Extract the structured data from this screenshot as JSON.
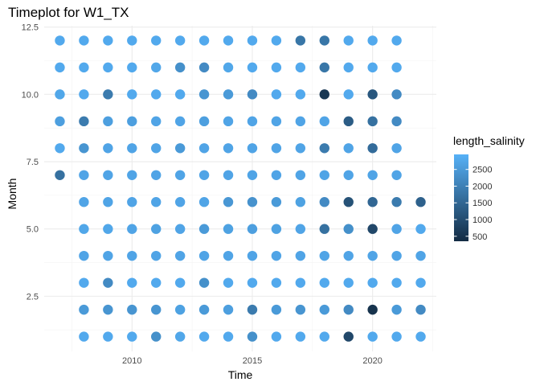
{
  "chart_data": {
    "type": "scatter",
    "title": "Timeplot for W1_TX",
    "xlabel": "Time",
    "ylabel": "Month",
    "xlim": [
      2006.35,
      2022.65
    ],
    "ylim": [
      0.45,
      12.55
    ],
    "x_ticks": [
      2010,
      2015,
      2020
    ],
    "x_tick_labels": [
      "2010",
      "2015",
      "2020"
    ],
    "y_ticks": [
      2.5,
      5.0,
      7.5,
      10.0,
      12.5
    ],
    "y_tick_labels": [
      "2.5",
      "5.0",
      "7.5",
      "10.0",
      "12.5"
    ],
    "grid": true,
    "legend": {
      "title": "length_salinity",
      "position": "right",
      "ticks": [
        500,
        1000,
        1500,
        2000,
        2500
      ],
      "tick_labels": [
        "500",
        "1000",
        "1500",
        "2000",
        "2500"
      ],
      "range": [
        350,
        2950
      ],
      "low_color": "#132B43",
      "high_color": "#56B1F7"
    },
    "series": [
      {
        "x": 2007,
        "points": [
          [
            7,
            1700
          ],
          [
            8,
            2800
          ],
          [
            9,
            2600
          ],
          [
            10,
            2750
          ],
          [
            11,
            2800
          ],
          [
            12,
            2800
          ]
        ]
      },
      {
        "x": 2008,
        "points": [
          [
            1,
            2800
          ],
          [
            2,
            2500
          ],
          [
            3,
            2800
          ],
          [
            4,
            2700
          ],
          [
            5,
            2750
          ],
          [
            6,
            2700
          ],
          [
            7,
            2700
          ],
          [
            8,
            2400
          ],
          [
            9,
            1900
          ],
          [
            10,
            2800
          ],
          [
            11,
            2800
          ],
          [
            12,
            2800
          ]
        ]
      },
      {
        "x": 2009,
        "points": [
          [
            1,
            2800
          ],
          [
            2,
            2400
          ],
          [
            3,
            2200
          ],
          [
            4,
            2700
          ],
          [
            5,
            2750
          ],
          [
            6,
            2700
          ],
          [
            7,
            2700
          ],
          [
            8,
            2700
          ],
          [
            9,
            2600
          ],
          [
            10,
            1900
          ],
          [
            11,
            2800
          ],
          [
            12,
            2800
          ]
        ]
      },
      {
        "x": 2010,
        "points": [
          [
            1,
            2800
          ],
          [
            2,
            2400
          ],
          [
            3,
            2800
          ],
          [
            4,
            2700
          ],
          [
            5,
            2700
          ],
          [
            6,
            2700
          ],
          [
            7,
            2700
          ],
          [
            8,
            2700
          ],
          [
            9,
            2600
          ],
          [
            10,
            2800
          ],
          [
            11,
            2800
          ],
          [
            12,
            2800
          ]
        ]
      },
      {
        "x": 2011,
        "points": [
          [
            1,
            2300
          ],
          [
            2,
            2400
          ],
          [
            3,
            2800
          ],
          [
            4,
            2700
          ],
          [
            5,
            2650
          ],
          [
            6,
            2700
          ],
          [
            7,
            2700
          ],
          [
            8,
            2700
          ],
          [
            9,
            2700
          ],
          [
            10,
            2800
          ],
          [
            11,
            2750
          ],
          [
            12,
            2800
          ]
        ]
      },
      {
        "x": 2012,
        "points": [
          [
            1,
            2750
          ],
          [
            2,
            2650
          ],
          [
            3,
            2800
          ],
          [
            4,
            2700
          ],
          [
            5,
            2700
          ],
          [
            6,
            2700
          ],
          [
            7,
            2700
          ],
          [
            8,
            2500
          ],
          [
            9,
            2700
          ],
          [
            10,
            2800
          ],
          [
            11,
            2300
          ],
          [
            12,
            2800
          ]
        ]
      },
      {
        "x": 2013,
        "points": [
          [
            1,
            2800
          ],
          [
            2,
            2500
          ],
          [
            3,
            2300
          ],
          [
            4,
            2700
          ],
          [
            5,
            2500
          ],
          [
            6,
            2700
          ],
          [
            7,
            2700
          ],
          [
            8,
            2700
          ],
          [
            9,
            2600
          ],
          [
            10,
            2400
          ],
          [
            11,
            2200
          ],
          [
            12,
            2800
          ]
        ]
      },
      {
        "x": 2014,
        "points": [
          [
            1,
            2800
          ],
          [
            2,
            2600
          ],
          [
            3,
            2800
          ],
          [
            4,
            2700
          ],
          [
            5,
            2650
          ],
          [
            6,
            2450
          ],
          [
            7,
            2700
          ],
          [
            8,
            2700
          ],
          [
            9,
            2700
          ],
          [
            10,
            2500
          ],
          [
            11,
            2750
          ],
          [
            12,
            2800
          ]
        ]
      },
      {
        "x": 2015,
        "points": [
          [
            1,
            2300
          ],
          [
            2,
            1900
          ],
          [
            3,
            2800
          ],
          [
            4,
            2700
          ],
          [
            5,
            2600
          ],
          [
            6,
            2350
          ],
          [
            7,
            2700
          ],
          [
            8,
            2700
          ],
          [
            9,
            2700
          ],
          [
            10,
            2200
          ],
          [
            11,
            2800
          ],
          [
            12,
            2800
          ]
        ]
      },
      {
        "x": 2016,
        "points": [
          [
            1,
            2800
          ],
          [
            2,
            2500
          ],
          [
            3,
            2800
          ],
          [
            4,
            2700
          ],
          [
            5,
            2650
          ],
          [
            6,
            2500
          ],
          [
            7,
            2700
          ],
          [
            8,
            2700
          ],
          [
            9,
            2700
          ],
          [
            10,
            2800
          ],
          [
            11,
            2800
          ],
          [
            12,
            2800
          ]
        ]
      },
      {
        "x": 2017,
        "points": [
          [
            1,
            2800
          ],
          [
            2,
            2400
          ],
          [
            3,
            2800
          ],
          [
            4,
            2700
          ],
          [
            5,
            2700
          ],
          [
            6,
            2650
          ],
          [
            7,
            2700
          ],
          [
            8,
            2700
          ],
          [
            9,
            2700
          ],
          [
            10,
            2800
          ],
          [
            11,
            2800
          ],
          [
            12,
            1800
          ]
        ]
      },
      {
        "x": 2018,
        "points": [
          [
            1,
            2800
          ],
          [
            2,
            2500
          ],
          [
            3,
            2800
          ],
          [
            4,
            2700
          ],
          [
            5,
            1700
          ],
          [
            6,
            2200
          ],
          [
            7,
            2700
          ],
          [
            8,
            1900
          ],
          [
            9,
            2700
          ],
          [
            10,
            600
          ],
          [
            11,
            1800
          ],
          [
            12,
            1800
          ]
        ]
      },
      {
        "x": 2019,
        "points": [
          [
            1,
            900
          ],
          [
            2,
            2200
          ],
          [
            3,
            2800
          ],
          [
            4,
            2700
          ],
          [
            5,
            2300
          ],
          [
            6,
            1100
          ],
          [
            7,
            2700
          ],
          [
            8,
            2700
          ],
          [
            9,
            1300
          ],
          [
            10,
            2800
          ],
          [
            11,
            2800
          ],
          [
            12,
            2800
          ]
        ]
      },
      {
        "x": 2020,
        "points": [
          [
            1,
            2800
          ],
          [
            2,
            500
          ],
          [
            3,
            2800
          ],
          [
            4,
            2700
          ],
          [
            5,
            900
          ],
          [
            6,
            1500
          ],
          [
            7,
            2700
          ],
          [
            8,
            1600
          ],
          [
            9,
            1700
          ],
          [
            10,
            1200
          ],
          [
            11,
            2800
          ],
          [
            12,
            2800
          ]
        ]
      },
      {
        "x": 2021,
        "points": [
          [
            1,
            2800
          ],
          [
            2,
            2500
          ],
          [
            3,
            2800
          ],
          [
            4,
            2700
          ],
          [
            5,
            2700
          ],
          [
            6,
            1900
          ],
          [
            7,
            2700
          ],
          [
            8,
            2700
          ],
          [
            9,
            2200
          ],
          [
            10,
            2200
          ],
          [
            11,
            2800
          ],
          [
            12,
            2800
          ]
        ]
      },
      {
        "x": 2022,
        "points": [
          [
            1,
            2800
          ],
          [
            2,
            2200
          ],
          [
            3,
            2800
          ],
          [
            4,
            2700
          ],
          [
            5,
            2800
          ],
          [
            6,
            1400
          ]
        ]
      }
    ]
  }
}
